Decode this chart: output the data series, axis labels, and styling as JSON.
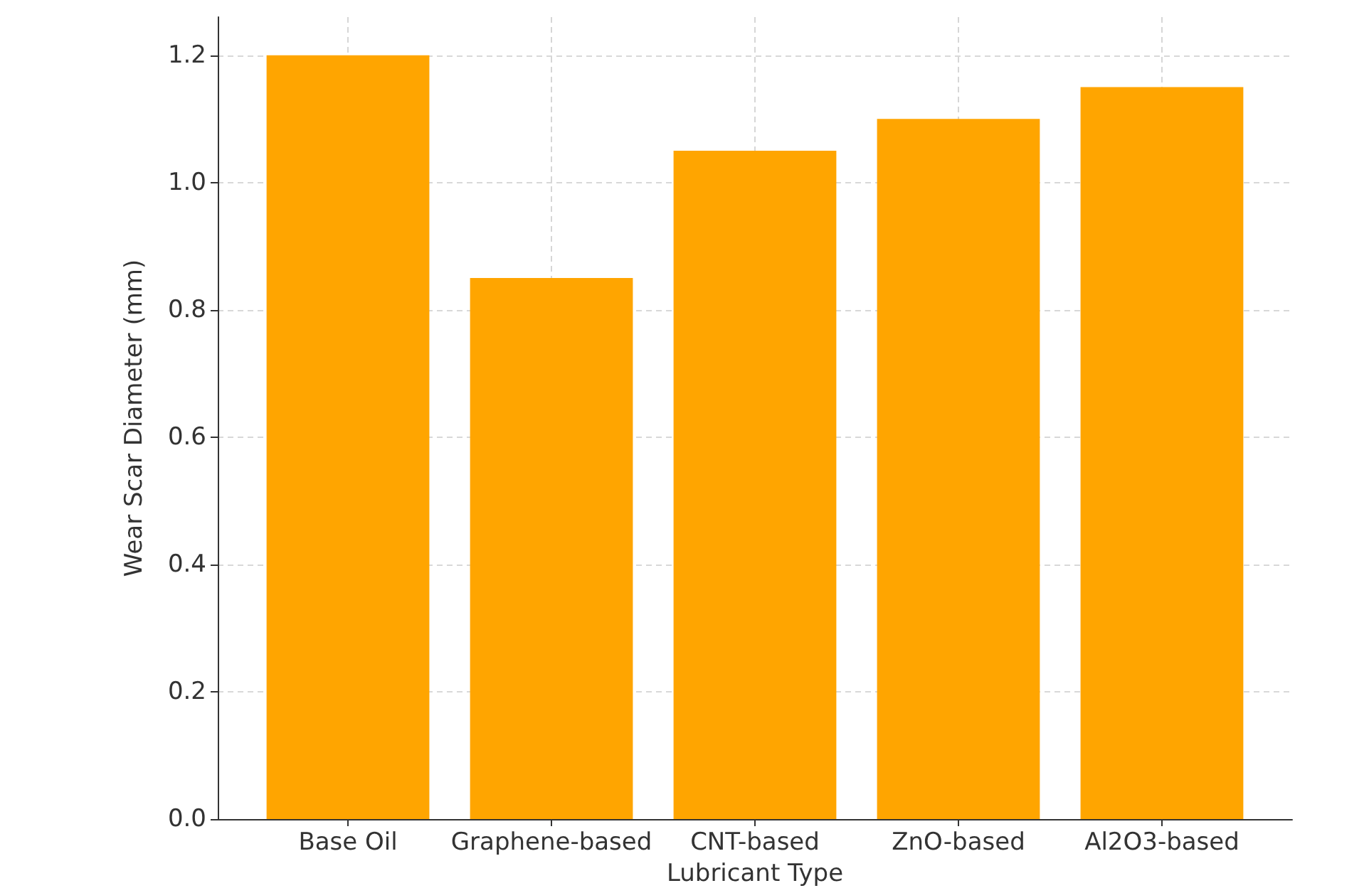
{
  "chart_data": {
    "type": "bar",
    "xlabel": "Lubricant Type",
    "ylabel": "Wear Scar Diameter (mm)",
    "categories": [
      "Base Oil",
      "Graphene-based",
      "CNT-based",
      "ZnO-based",
      "Al2O3-based"
    ],
    "values": [
      1.2,
      0.85,
      1.05,
      1.1,
      1.15
    ],
    "color": "#ffa500",
    "ylim": [
      0,
      1.26
    ],
    "yticks": [
      {
        "value": 0,
        "label": "0.0"
      },
      0.2,
      0.4,
      0.6,
      0.8,
      {
        "value": 1,
        "label": "1.0"
      },
      1.2
    ],
    "grid": true
  }
}
